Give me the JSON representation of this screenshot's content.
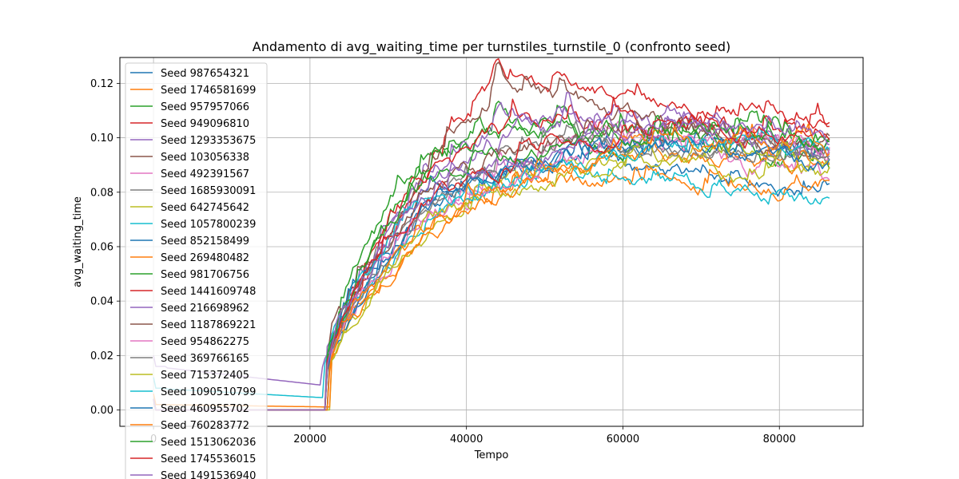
{
  "chart_data": {
    "type": "line",
    "title": "Andamento di avg_waiting_time per turnstiles_turnstile_0 (confronto seed)",
    "xlabel": "Tempo",
    "ylabel": "avg_waiting_time",
    "xlim": [
      -4300,
      90700
    ],
    "ylim": [
      -0.006,
      0.1295
    ],
    "xticks": [
      0,
      20000,
      40000,
      60000,
      80000
    ],
    "xtick_labels": [
      "0",
      "20000",
      "40000",
      "60000",
      "80000"
    ],
    "yticks": [
      0.0,
      0.02,
      0.04,
      0.06,
      0.08,
      0.1,
      0.12
    ],
    "ytick_labels": [
      "0.00",
      "0.02",
      "0.04",
      "0.06",
      "0.08",
      "0.10",
      "0.12"
    ],
    "grid": true,
    "legend_position": "upper-left",
    "series": [
      {
        "name": "Seed 987654321",
        "color": "#1f77b4",
        "initial": 0.0,
        "ramp_start": 22300,
        "ramp_end": 35000,
        "ramp_value": 0.075,
        "peak_x": 55000,
        "peak": 0.092,
        "end": 0.079,
        "wiggle": 0.004
      },
      {
        "name": "Seed 1746581699",
        "color": "#ff7f0e",
        "initial": 0.0,
        "ramp_start": 22500,
        "ramp_end": 36000,
        "ramp_value": 0.07,
        "peak_x": 55000,
        "peak": 0.085,
        "end": 0.082,
        "wiggle": 0.004
      },
      {
        "name": "Seed 957957066",
        "color": "#2ca02c",
        "initial": 0.0,
        "ramp_start": 22000,
        "ramp_end": 32000,
        "ramp_value": 0.085,
        "peak_x": 45000,
        "peak": 0.105,
        "end": 0.09,
        "wiggle": 0.005
      },
      {
        "name": "Seed 949096810",
        "color": "#d62728",
        "initial": 0.0,
        "ramp_start": 22200,
        "ramp_end": 34000,
        "ramp_value": 0.08,
        "peak_x": 47000,
        "peak": 0.121,
        "end": 0.107,
        "wiggle": 0.004
      },
      {
        "name": "Seed 1293353675",
        "color": "#9467bd",
        "initial": 0.0,
        "ramp_start": 22000,
        "ramp_end": 33000,
        "ramp_value": 0.08,
        "peak_x": 52000,
        "peak": 0.112,
        "end": 0.098,
        "wiggle": 0.005
      },
      {
        "name": "Seed 103056338",
        "color": "#8c564b",
        "initial": 0.0,
        "ramp_start": 22100,
        "ramp_end": 34000,
        "ramp_value": 0.082,
        "peak_x": 46000,
        "peak": 0.118,
        "end": 0.096,
        "wiggle": 0.005
      },
      {
        "name": "Seed 492391567",
        "color": "#e377c2",
        "initial": 0.0,
        "ramp_start": 22300,
        "ramp_end": 36000,
        "ramp_value": 0.072,
        "peak_x": 60000,
        "peak": 0.1,
        "end": 0.086,
        "wiggle": 0.005
      },
      {
        "name": "Seed 1685930091",
        "color": "#7f7f7f",
        "initial": 0.0,
        "ramp_start": 22400,
        "ramp_end": 35000,
        "ramp_value": 0.075,
        "peak_x": 58000,
        "peak": 0.098,
        "end": 0.094,
        "wiggle": 0.004
      },
      {
        "name": "Seed 642745642",
        "color": "#bcbd22",
        "initial": 0.0,
        "ramp_start": 22600,
        "ramp_end": 37000,
        "ramp_value": 0.07,
        "peak_x": 56000,
        "peak": 0.092,
        "end": 0.085,
        "wiggle": 0.004
      },
      {
        "name": "Seed 1057800239",
        "color": "#17becf",
        "initial": 0.0,
        "ramp_start": 22200,
        "ramp_end": 36000,
        "ramp_value": 0.072,
        "peak_x": 55000,
        "peak": 0.088,
        "end": 0.078,
        "wiggle": 0.004
      },
      {
        "name": "Seed 852158499",
        "color": "#1f77b4",
        "initial": 0.0,
        "ramp_start": 22500,
        "ramp_end": 35000,
        "ramp_value": 0.076,
        "peak_x": 60000,
        "peak": 0.097,
        "end": 0.095,
        "wiggle": 0.004
      },
      {
        "name": "Seed 269480482",
        "color": "#ff7f0e",
        "initial": 0.002,
        "ramp_start": 22600,
        "ramp_end": 37000,
        "ramp_value": 0.068,
        "peak_x": 62000,
        "peak": 0.094,
        "end": 0.09,
        "wiggle": 0.004
      },
      {
        "name": "Seed 981706756",
        "color": "#2ca02c",
        "initial": 0.0,
        "ramp_start": 22000,
        "ramp_end": 33000,
        "ramp_value": 0.082,
        "peak_x": 50000,
        "peak": 0.106,
        "end": 0.099,
        "wiggle": 0.005
      },
      {
        "name": "Seed 1441609748",
        "color": "#d62728",
        "initial": 0.0,
        "ramp_start": 22100,
        "ramp_end": 33000,
        "ramp_value": 0.08,
        "peak_x": 52000,
        "peak": 0.11,
        "end": 0.101,
        "wiggle": 0.005
      },
      {
        "name": "Seed 216698962",
        "color": "#9467bd",
        "initial": 0.016,
        "ramp_start": 21500,
        "ramp_end": 33000,
        "ramp_value": 0.08,
        "peak_x": 50000,
        "peak": 0.105,
        "end": 0.096,
        "wiggle": 0.005
      },
      {
        "name": "Seed 1187869221",
        "color": "#8c564b",
        "initial": 0.0,
        "ramp_start": 22200,
        "ramp_end": 34000,
        "ramp_value": 0.078,
        "peak_x": 58000,
        "peak": 0.103,
        "end": 0.098,
        "wiggle": 0.004
      },
      {
        "name": "Seed 954862275",
        "color": "#e377c2",
        "initial": 0.0,
        "ramp_start": 22300,
        "ramp_end": 35000,
        "ramp_value": 0.074,
        "peak_x": 80000,
        "peak": 0.102,
        "end": 0.095,
        "wiggle": 0.004
      },
      {
        "name": "Seed 369766165",
        "color": "#7f7f7f",
        "initial": 0.0,
        "ramp_start": 22200,
        "ramp_end": 35000,
        "ramp_value": 0.076,
        "peak_x": 60000,
        "peak": 0.098,
        "end": 0.093,
        "wiggle": 0.004
      },
      {
        "name": "Seed 715372405",
        "color": "#bcbd22",
        "initial": 0.0,
        "ramp_start": 22400,
        "ramp_end": 36000,
        "ramp_value": 0.072,
        "peak_x": 80000,
        "peak": 0.096,
        "end": 0.089,
        "wiggle": 0.004
      },
      {
        "name": "Seed 1090510799",
        "color": "#17becf",
        "initial": 0.008,
        "ramp_start": 21800,
        "ramp_end": 34000,
        "ramp_value": 0.076,
        "peak_x": 79000,
        "peak": 0.1,
        "end": 0.097,
        "wiggle": 0.004
      },
      {
        "name": "Seed 460955702",
        "color": "#1f77b4",
        "initial": 0.0,
        "ramp_start": 22300,
        "ramp_end": 35000,
        "ramp_value": 0.076,
        "peak_x": 60000,
        "peak": 0.096,
        "end": 0.091,
        "wiggle": 0.004
      },
      {
        "name": "Seed 760283772",
        "color": "#ff7f0e",
        "initial": 0.0,
        "ramp_start": 22500,
        "ramp_end": 36000,
        "ramp_value": 0.07,
        "peak_x": 70000,
        "peak": 0.098,
        "end": 0.094,
        "wiggle": 0.004
      },
      {
        "name": "Seed 1513062036",
        "color": "#2ca02c",
        "initial": 0.0,
        "ramp_start": 22000,
        "ramp_end": 33000,
        "ramp_value": 0.082,
        "peak_x": 70000,
        "peak": 0.103,
        "end": 0.098,
        "wiggle": 0.004
      },
      {
        "name": "Seed 1745536015",
        "color": "#d62728",
        "initial": 0.0,
        "ramp_start": 22100,
        "ramp_end": 34000,
        "ramp_value": 0.078,
        "peak_x": 70000,
        "peak": 0.104,
        "end": 0.102,
        "wiggle": 0.004
      },
      {
        "name": "Seed 1491536940",
        "color": "#9467bd",
        "initial": 0.0,
        "ramp_start": 22200,
        "ramp_end": 34000,
        "ramp_value": 0.078,
        "peak_x": 78000,
        "peak": 0.107,
        "end": 0.099,
        "wiggle": 0.004
      }
    ],
    "x_end": 86400
  }
}
